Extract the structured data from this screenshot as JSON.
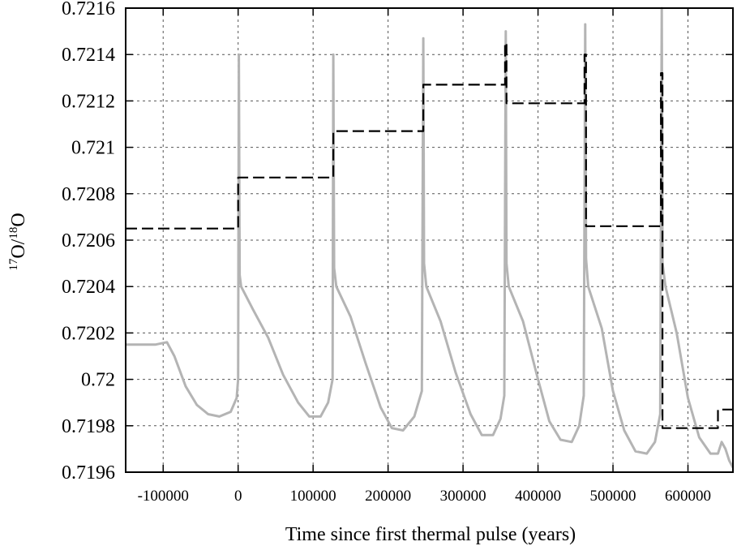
{
  "chart_data": {
    "type": "line",
    "title": "",
    "xlabel": "Time since first thermal pulse (years)",
    "ylabel_parts": [
      "17",
      "O/",
      "18",
      "O"
    ],
    "xlim": [
      -150000,
      660000
    ],
    "ylim": [
      0.7196,
      0.7216
    ],
    "x_ticks": [
      -100000,
      0,
      100000,
      200000,
      300000,
      400000,
      500000,
      600000
    ],
    "x_tick_labels": [
      "-100000",
      "0",
      "100000",
      "200000",
      "300000",
      "400000",
      "500000",
      "600000"
    ],
    "y_ticks": [
      0.7196,
      0.7198,
      0.72,
      0.7202,
      0.7204,
      0.7206,
      0.7208,
      0.721,
      0.7212,
      0.7214,
      0.7216
    ],
    "y_tick_labels": [
      "0.7196",
      "0.7198",
      "0.72",
      "0.7202",
      "0.7204",
      "0.7206",
      "0.7208",
      "0.721",
      "0.7212",
      "0.7214",
      "0.7216"
    ],
    "grid": true,
    "series": [
      {
        "style": "dashed",
        "color": "#000000",
        "points": [
          [
            -150000,
            0.72065
          ],
          [
            0,
            0.72065
          ],
          [
            0,
            0.72087
          ],
          [
            127000,
            0.72087
          ],
          [
            127000,
            0.72107
          ],
          [
            247000,
            0.72107
          ],
          [
            247000,
            0.72127
          ],
          [
            356000,
            0.72127
          ],
          [
            356000,
            0.72145
          ],
          [
            358000,
            0.72145
          ],
          [
            358000,
            0.72119
          ],
          [
            462000,
            0.72119
          ],
          [
            462000,
            0.7214
          ],
          [
            464000,
            0.7214
          ],
          [
            464000,
            0.72066
          ],
          [
            564000,
            0.72066
          ],
          [
            564000,
            0.72132
          ],
          [
            566000,
            0.72132
          ],
          [
            566000,
            0.71979
          ],
          [
            640000,
            0.71979
          ],
          [
            640000,
            0.71987
          ],
          [
            660000,
            0.71987
          ]
        ]
      },
      {
        "style": "solid",
        "color": "#b4b4b4",
        "points": [
          [
            -150000,
            0.72015
          ],
          [
            -110000,
            0.72015
          ],
          [
            -95000,
            0.72016
          ],
          [
            -85000,
            0.7201
          ],
          [
            -70000,
            0.71997
          ],
          [
            -55000,
            0.71989
          ],
          [
            -40000,
            0.71985
          ],
          [
            -25000,
            0.71984
          ],
          [
            -10000,
            0.71986
          ],
          [
            -2000,
            0.71992
          ],
          [
            0,
            0.72
          ],
          [
            1000,
            0.7214
          ],
          [
            2000,
            0.72045
          ],
          [
            4000,
            0.7204
          ],
          [
            20000,
            0.7203
          ],
          [
            40000,
            0.72018
          ],
          [
            60000,
            0.72002
          ],
          [
            80000,
            0.7199
          ],
          [
            95000,
            0.71984
          ],
          [
            110000,
            0.71984
          ],
          [
            120000,
            0.7199
          ],
          [
            126000,
            0.72
          ],
          [
            127000,
            0.7214
          ],
          [
            128000,
            0.72048
          ],
          [
            131000,
            0.7204
          ],
          [
            150000,
            0.72027
          ],
          [
            170000,
            0.72007
          ],
          [
            190000,
            0.71988
          ],
          [
            205000,
            0.71979
          ],
          [
            220000,
            0.71978
          ],
          [
            235000,
            0.71984
          ],
          [
            245000,
            0.71995
          ],
          [
            247000,
            0.72147
          ],
          [
            248000,
            0.7205
          ],
          [
            251000,
            0.7204
          ],
          [
            270000,
            0.72025
          ],
          [
            290000,
            0.72003
          ],
          [
            310000,
            0.71985
          ],
          [
            325000,
            0.71976
          ],
          [
            340000,
            0.71976
          ],
          [
            350000,
            0.71983
          ],
          [
            355000,
            0.71993
          ],
          [
            357000,
            0.7215
          ],
          [
            358000,
            0.7205
          ],
          [
            361000,
            0.7204
          ],
          [
            380000,
            0.72025
          ],
          [
            400000,
            0.72
          ],
          [
            415000,
            0.71982
          ],
          [
            430000,
            0.71974
          ],
          [
            445000,
            0.71973
          ],
          [
            455000,
            0.7198
          ],
          [
            461000,
            0.71993
          ],
          [
            463000,
            0.72153
          ],
          [
            464000,
            0.72052
          ],
          [
            467000,
            0.7204
          ],
          [
            485000,
            0.72022
          ],
          [
            500000,
            0.71995
          ],
          [
            515000,
            0.71978
          ],
          [
            530000,
            0.71969
          ],
          [
            545000,
            0.71968
          ],
          [
            556000,
            0.71973
          ],
          [
            563000,
            0.71985
          ],
          [
            565000,
            0.7216
          ],
          [
            566000,
            0.7205
          ],
          [
            570000,
            0.7204
          ],
          [
            585000,
            0.7202
          ],
          [
            600000,
            0.71992
          ],
          [
            615000,
            0.71975
          ],
          [
            630000,
            0.71968
          ],
          [
            640000,
            0.71968
          ],
          [
            645000,
            0.71973
          ],
          [
            650000,
            0.7197
          ],
          [
            655000,
            0.71965
          ],
          [
            660000,
            0.71962
          ]
        ]
      }
    ]
  }
}
